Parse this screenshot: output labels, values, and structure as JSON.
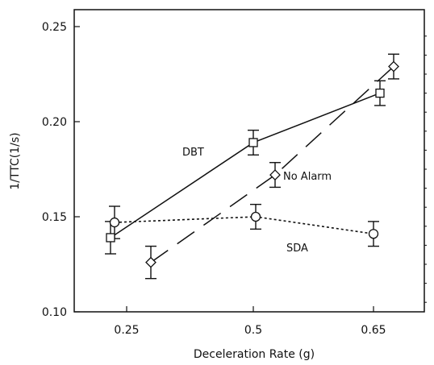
{
  "chart_data": {
    "type": "line",
    "xlabel": "Deceleration Rate (g)",
    "ylabel": "1/TTC(1/s)",
    "x_ticks": [
      "0.25",
      "0.5",
      "0.65"
    ],
    "y_ticks": [
      "0.10",
      "0.15",
      "0.20",
      "0.25"
    ],
    "ylim": [
      0.1,
      0.26
    ],
    "grid": false,
    "series": [
      {
        "name": "DBT",
        "marker": "square",
        "line_style": "solid",
        "points": [
          {
            "x": "0.25",
            "y": 0.139,
            "err": 0.0085
          },
          {
            "x": "0.5",
            "y": 0.189,
            "err": 0.0065
          },
          {
            "x": "0.65",
            "y": 0.215,
            "err": 0.0065
          }
        ]
      },
      {
        "name": "No Alarm",
        "marker": "diamond",
        "line_style": "long-dash",
        "points": [
          {
            "x": "0.25",
            "y": 0.126,
            "err": 0.0085
          },
          {
            "x": "0.5",
            "y": 0.172,
            "err": 0.0065
          },
          {
            "x": "0.65",
            "y": 0.229,
            "err": 0.0065
          }
        ]
      },
      {
        "name": "SDA",
        "marker": "circle",
        "line_style": "dotted",
        "points": [
          {
            "x": "0.25",
            "y": 0.147,
            "err": 0.0085
          },
          {
            "x": "0.5",
            "y": 0.15,
            "err": 0.0065
          },
          {
            "x": "0.65",
            "y": 0.141,
            "err": 0.0065
          }
        ]
      }
    ]
  }
}
